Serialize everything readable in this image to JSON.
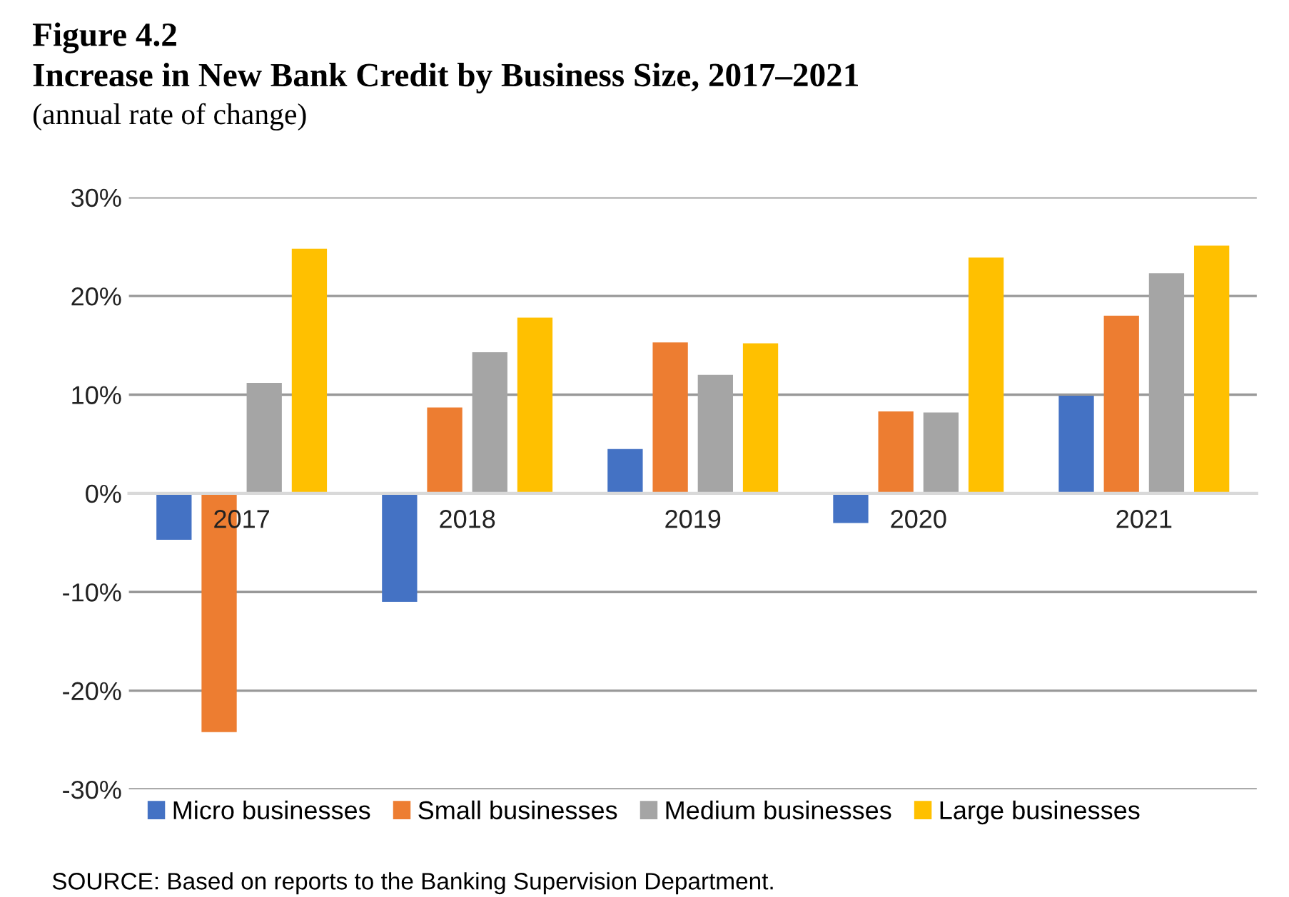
{
  "chart_data": {
    "type": "bar",
    "title": "Figure 4.2\nIncrease in New Bank Credit by Business Size, 2017–2021",
    "subtitle": "(annual rate of change)",
    "categories": [
      "2017",
      "2018",
      "2019",
      "2020",
      "2021"
    ],
    "series": [
      {
        "name": "Micro businesses",
        "color": "#4472c4",
        "values": [
          -4.7,
          -11.0,
          4.5,
          -3.0,
          9.9
        ]
      },
      {
        "name": "Small businesses",
        "color": "#ed7d31",
        "values": [
          -24.2,
          8.7,
          15.3,
          8.3,
          18.0
        ]
      },
      {
        "name": "Medium businesses",
        "color": "#a5a5a5",
        "values": [
          11.2,
          14.3,
          12.0,
          8.2,
          22.3
        ]
      },
      {
        "name": "Large businesses",
        "color": "#ffc000",
        "values": [
          24.8,
          17.8,
          15.2,
          23.9,
          25.1
        ]
      }
    ],
    "ylim": [
      -30,
      30
    ],
    "yticks": [
      {
        "value": -30,
        "label": "-30%"
      },
      {
        "value": -20,
        "label": "-20%"
      },
      {
        "value": -10,
        "label": "-10%"
      },
      {
        "value": 0,
        "label": "0%"
      },
      {
        "value": 10,
        "label": "10%"
      },
      {
        "value": 20,
        "label": "20%"
      },
      {
        "value": 30,
        "label": "30%"
      }
    ],
    "grid": "y",
    "legend": "bottom",
    "annotations": [
      "SOURCE: Based on reports to the Banking Supervision Department."
    ]
  }
}
